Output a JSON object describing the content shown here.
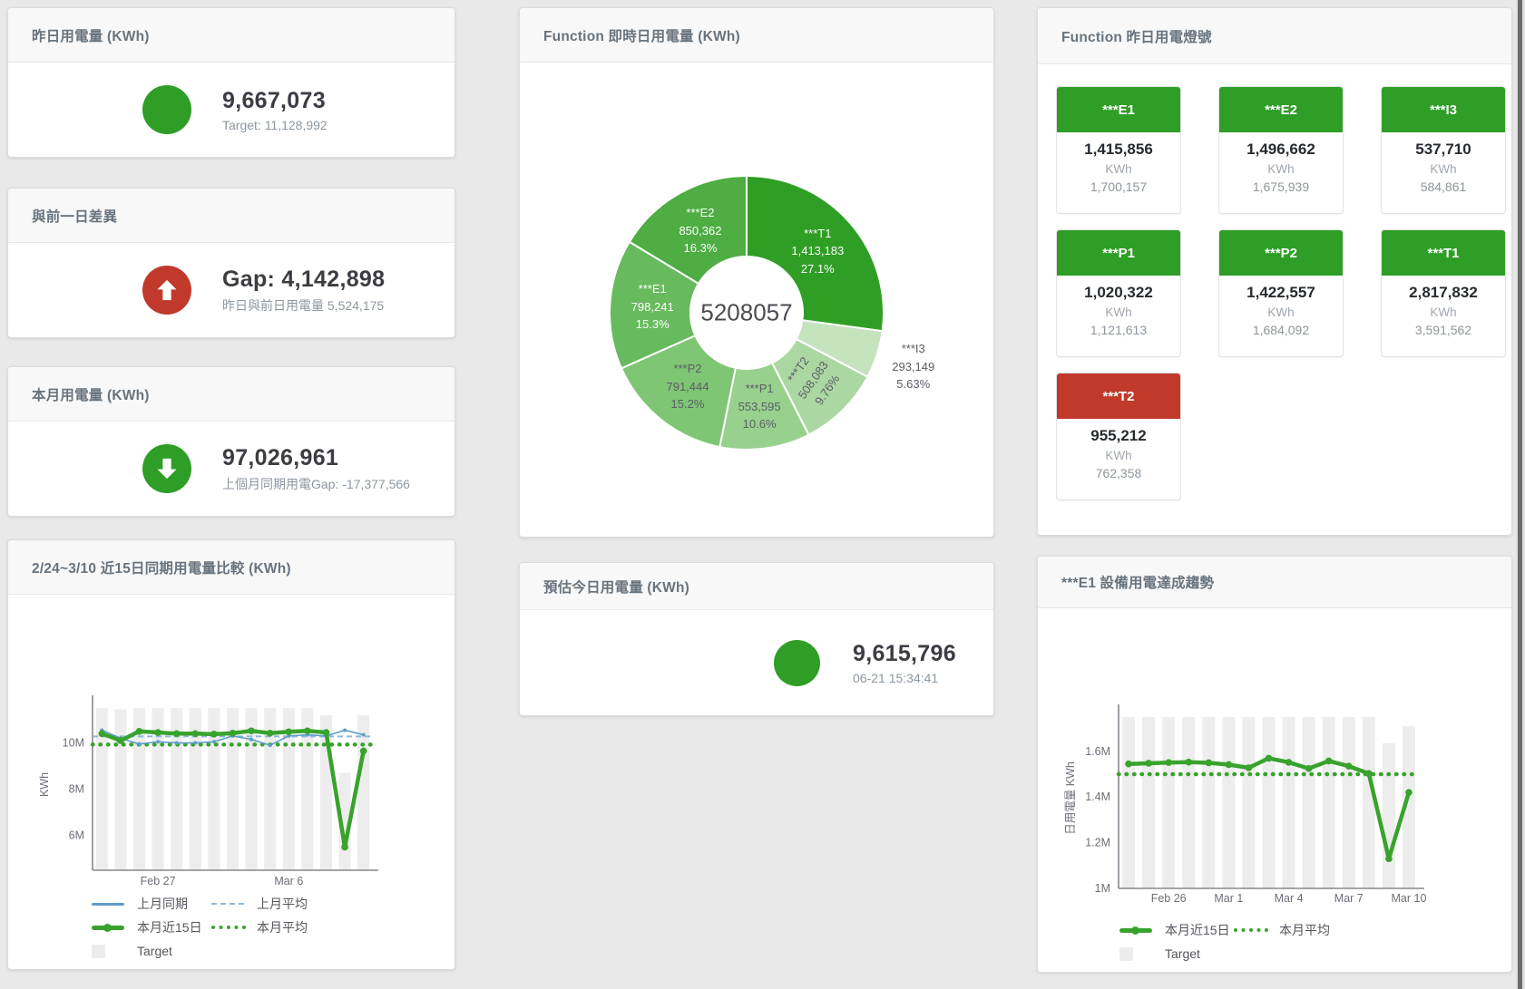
{
  "colors": {
    "green": "#2e9e26",
    "red": "#c0392b",
    "blue_line": "#5e9dc8",
    "blue_dash": "#8cb8d9",
    "green_line": "#38a32c",
    "bar_gray": "#ededed"
  },
  "cards": {
    "yesterday": {
      "title": "昨日用電量 (KWh)",
      "value": "9,667,073",
      "subtitle": "Target: 11,128,992",
      "status_color": "#2e9e26",
      "icon": "none"
    },
    "day_gap": {
      "title": "與前一日差異",
      "value": "Gap: 4,142,898",
      "subtitle": "昨日與前日用電量 5,524,175",
      "status_color": "#c0392b",
      "icon": "arrow-up"
    },
    "month": {
      "title": "本月用電量 (KWh)",
      "value": "97,026,961",
      "subtitle": "上個月同期用電Gap: -17,377,566",
      "status_color": "#2e9e26",
      "icon": "arrow-down"
    },
    "estimate": {
      "title": "預估今日用電量 (KWh)",
      "value": "9,615,796",
      "subtitle": "06-21 15:34:41",
      "status_color": "#2e9e26",
      "icon": "none"
    },
    "realtime_donut": {
      "title": "Function 即時日用電量 (KWh)"
    },
    "lights": {
      "title": "Function 昨日用電燈號",
      "tiles": [
        {
          "name": "***E1",
          "value": "1,415,856",
          "unit": "KWh",
          "target": "1,700,157",
          "status_color": "#2e9e26"
        },
        {
          "name": "***E2",
          "value": "1,496,662",
          "unit": "KWh",
          "target": "1,675,939",
          "status_color": "#2e9e26"
        },
        {
          "name": "***I3",
          "value": "537,710",
          "unit": "KWh",
          "target": "584,861",
          "status_color": "#2e9e26"
        },
        {
          "name": "***P1",
          "value": "1,020,322",
          "unit": "KWh",
          "target": "1,121,613",
          "status_color": "#2e9e26"
        },
        {
          "name": "***P2",
          "value": "1,422,557",
          "unit": "KWh",
          "target": "1,684,092",
          "status_color": "#2e9e26"
        },
        {
          "name": "***T1",
          "value": "2,817,832",
          "unit": "KWh",
          "target": "3,591,562",
          "status_color": "#2e9e26"
        },
        {
          "name": "***T2",
          "value": "955,212",
          "unit": "KWh",
          "target": "762,358",
          "status_color": "#c0392b"
        }
      ]
    },
    "compare": {
      "title": "2/24~3/10 近15日同期用電量比較 (KWh)"
    },
    "trend": {
      "title": "***E1 設備用電達成趨勢"
    }
  },
  "chart_data": [
    {
      "id": "realtime_donut",
      "type": "pie",
      "title": "Function 即時日用電量 (KWh)",
      "center_label": "5208057",
      "slices": [
        {
          "name": "***T1",
          "value": 1413183,
          "pct_label": "27.1%",
          "color": "#2f9e25",
          "text": "light"
        },
        {
          "name": "***I3",
          "value": 293149,
          "pct_label": "5.63%",
          "color": "#c4e4bd",
          "text": "dark",
          "outside": true
        },
        {
          "name": "***T2",
          "value": 508083,
          "pct_label": "9.76%",
          "color": "#abd8a2",
          "text": "dark",
          "rotate": -55
        },
        {
          "name": "***P1",
          "value": 553595,
          "pct_label": "10.6%",
          "color": "#97d18d",
          "text": "dark"
        },
        {
          "name": "***P2",
          "value": 791444,
          "pct_label": "15.2%",
          "color": "#7ec674",
          "text": "dark"
        },
        {
          "name": "***E1",
          "value": 798241,
          "pct_label": "15.3%",
          "color": "#68ba5e",
          "text": "light"
        },
        {
          "name": "***E2",
          "value": 850362,
          "pct_label": "16.3%",
          "color": "#4ead43",
          "text": "light"
        }
      ]
    },
    {
      "id": "compare",
      "type": "line",
      "title": "2/24~3/10 近15日同期用電量比較 (KWh)",
      "ylabel": "KWh",
      "ylim": [
        4.5,
        11.9
      ],
      "yticks": [
        {
          "v": 6,
          "label": "6M"
        },
        {
          "v": 8,
          "label": "8M"
        },
        {
          "v": 10,
          "label": "10M"
        }
      ],
      "xticks": [
        {
          "i": 3,
          "label": "Feb 27"
        },
        {
          "i": 10,
          "label": "Mar 6"
        }
      ],
      "series": [
        {
          "name": "Target",
          "kind": "bar",
          "color": "#ededed",
          "values": [
            11.5,
            11.45,
            11.5,
            11.5,
            11.5,
            11.5,
            11.5,
            11.5,
            11.5,
            11.5,
            11.5,
            11.5,
            11.2,
            8.7,
            11.2
          ]
        },
        {
          "name": "上月平均",
          "kind": "avg",
          "style": "dashed",
          "color": "#8cb8d9",
          "value": 10.28
        },
        {
          "name": "本月平均",
          "kind": "avg",
          "style": "dotted",
          "color": "#38a32c",
          "value": 9.93
        },
        {
          "name": "上月同期",
          "kind": "line",
          "style": "thin",
          "color": "#5e9dc8",
          "values": [
            10.55,
            10.2,
            9.95,
            10.05,
            10.0,
            10.0,
            10.05,
            10.3,
            10.15,
            9.9,
            10.3,
            10.35,
            10.3,
            10.55,
            10.35
          ]
        },
        {
          "name": "本月近15日",
          "kind": "line",
          "style": "thick",
          "color": "#38a32c",
          "values": [
            10.4,
            10.1,
            10.5,
            10.45,
            10.4,
            10.4,
            10.38,
            10.42,
            10.52,
            10.42,
            10.48,
            10.52,
            10.45,
            5.5,
            9.65
          ]
        }
      ],
      "legend": [
        {
          "label": "上月同期",
          "marker": "m-line"
        },
        {
          "label": "上月平均",
          "marker": "m-dash"
        },
        {
          "label": "本月近15日",
          "marker": "m-thick"
        },
        {
          "label": "本月平均",
          "marker": "m-dot"
        },
        {
          "label": "Target",
          "marker": "m-square"
        }
      ]
    },
    {
      "id": "trend",
      "type": "line",
      "title": "***E1 設備用電達成趨勢",
      "ylabel": "日用電量 KWh",
      "ylim": [
        1.0,
        1.79
      ],
      "yticks": [
        {
          "v": 1,
          "label": "1M"
        },
        {
          "v": 1.2,
          "label": "1.2M"
        },
        {
          "v": 1.4,
          "label": "1.4M"
        },
        {
          "v": 1.6,
          "label": "1.6M"
        }
      ],
      "xticks": [
        {
          "i": 2,
          "label": "Feb 26"
        },
        {
          "i": 5,
          "label": "Mar 1"
        },
        {
          "i": 8,
          "label": "Mar 4"
        },
        {
          "i": 11,
          "label": "Mar 7"
        },
        {
          "i": 14,
          "label": "Mar 10"
        }
      ],
      "series": [
        {
          "name": "Target",
          "kind": "bar",
          "color": "#ededed",
          "values": [
            1.75,
            1.75,
            1.75,
            1.75,
            1.75,
            1.75,
            1.75,
            1.75,
            1.75,
            1.75,
            1.75,
            1.75,
            1.75,
            1.635,
            1.71
          ]
        },
        {
          "name": "本月平均",
          "kind": "avg",
          "style": "dotted",
          "color": "#38a32c",
          "value": 1.5
        },
        {
          "name": "本月近15日",
          "kind": "line",
          "style": "thick",
          "color": "#38a32c",
          "values": [
            1.545,
            1.548,
            1.551,
            1.553,
            1.55,
            1.542,
            1.528,
            1.57,
            1.552,
            1.525,
            1.558,
            1.535,
            1.503,
            1.13,
            1.42
          ]
        }
      ],
      "legend": [
        {
          "label": "本月近15日",
          "marker": "m-thick"
        },
        {
          "label": "本月平均",
          "marker": "m-dot"
        },
        {
          "label": "Target",
          "marker": "m-square"
        }
      ]
    }
  ]
}
